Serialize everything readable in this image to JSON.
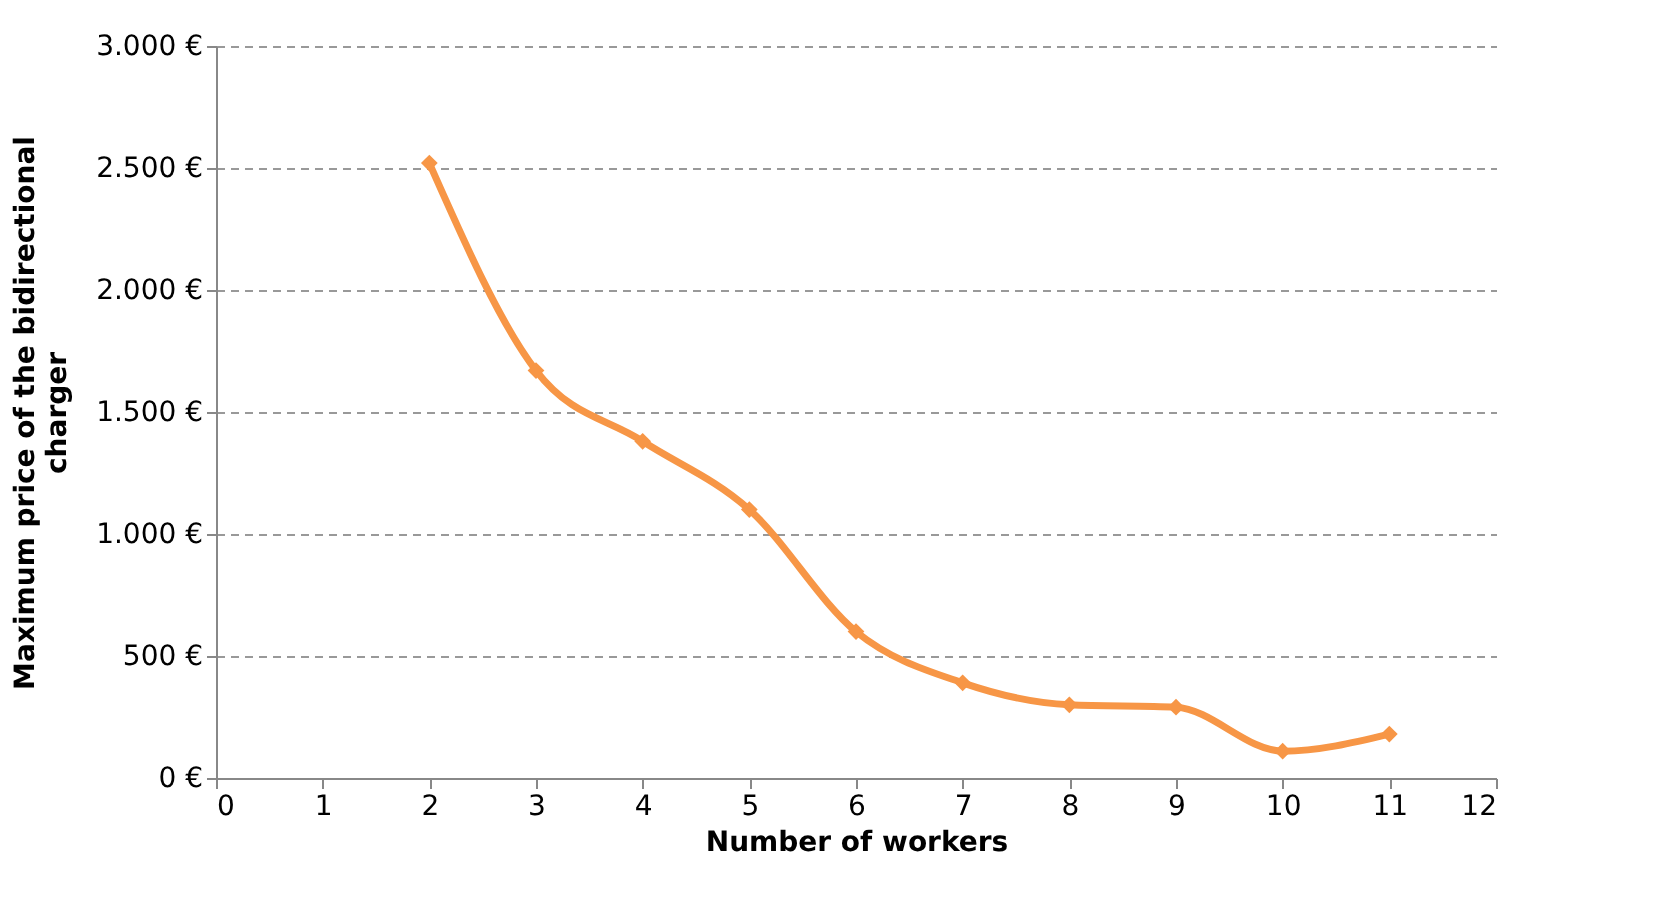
{
  "chart_data": {
    "type": "line",
    "xlabel": "Number of workers",
    "ylabel": "Maximum price of the bidirectional charger",
    "x": [
      2,
      3,
      4,
      5,
      6,
      7,
      8,
      9,
      10,
      11
    ],
    "series": [
      {
        "color": "#f79646",
        "values": [
          2520,
          1670,
          1380,
          1100,
          600,
          390,
          300,
          290,
          110,
          180
        ]
      }
    ],
    "xlim": [
      0,
      12
    ],
    "xticks": [
      0,
      1,
      2,
      3,
      4,
      5,
      6,
      7,
      8,
      9,
      10,
      11,
      12
    ],
    "ylim": [
      0,
      3000
    ],
    "yticks": [
      {
        "value": 0,
        "label": "0 €"
      },
      {
        "value": 500,
        "label": "500 €"
      },
      {
        "value": 1000,
        "label": "1.000 €"
      },
      {
        "value": 1500,
        "label": "1.500 €"
      },
      {
        "value": 2000,
        "label": "2.000 €"
      },
      {
        "value": 2500,
        "label": "2.500 €"
      },
      {
        "value": 3000,
        "label": "3.000 €"
      }
    ],
    "grid": "y",
    "marker": "diamond",
    "line_style": "solid"
  }
}
